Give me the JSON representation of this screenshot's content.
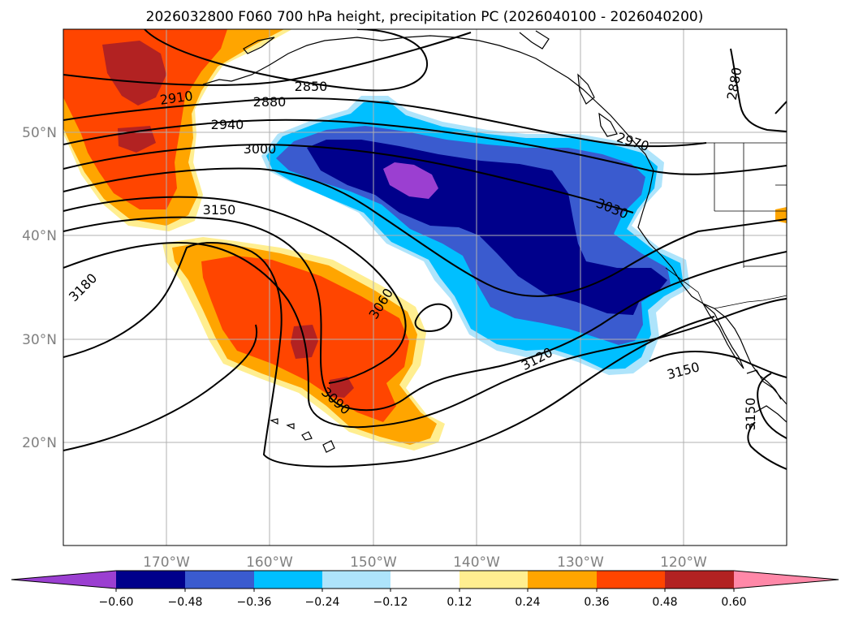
{
  "figure": {
    "title": "2026032800 F060 700 hPa height, precipitation PC (2026040100 - 2026040200)"
  },
  "map": {
    "longitude_labels": [
      "170°W",
      "160°W",
      "150°W",
      "140°W",
      "130°W",
      "120°W"
    ],
    "latitude_labels": [
      "50°N",
      "40°N",
      "30°N",
      "20°N"
    ],
    "coastline_color": "#000000",
    "grid_color": "#b0b0b0"
  },
  "colorbar": {
    "tick_labels": [
      "−0.60",
      "−0.48",
      "−0.36",
      "−0.24",
      "−0.12",
      "0.12",
      "0.24",
      "0.36",
      "0.48",
      "0.60"
    ],
    "colors": [
      "#9b3fd1",
      "#00008b",
      "#3a5bcf",
      "#00bfff",
      "#aee4fb",
      "#ffffff",
      "#ffee90",
      "#ffa500",
      "#ff4500",
      "#b22222",
      "#ff88a8"
    ]
  },
  "height_contours": {
    "labels": [
      {
        "id": "2850",
        "text": "2850"
      },
      {
        "id": "2880a",
        "text": "2880"
      },
      {
        "id": "2880b",
        "text": "2880"
      },
      {
        "id": "2910",
        "text": "2910"
      },
      {
        "id": "2940",
        "text": "2940"
      },
      {
        "id": "2970",
        "text": "2970"
      },
      {
        "id": "3000",
        "text": "3000"
      },
      {
        "id": "3030",
        "text": "3030"
      },
      {
        "id": "3060",
        "text": "3060"
      },
      {
        "id": "3090",
        "text": "3090"
      },
      {
        "id": "3120",
        "text": "3120"
      },
      {
        "id": "3150a",
        "text": "3150"
      },
      {
        "id": "3150b",
        "text": "3150"
      },
      {
        "id": "3150c",
        "text": "3150"
      },
      {
        "id": "3180",
        "text": "3180"
      }
    ]
  }
}
